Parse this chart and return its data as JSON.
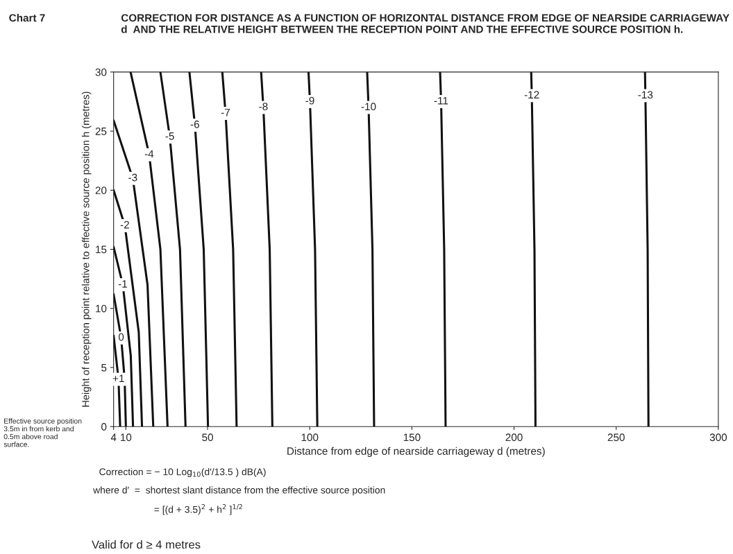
{
  "chart_data": {
    "type": "line",
    "title": "Chart 7",
    "subtitle": "CORRECTION FOR DISTANCE AS A FUNCTION OF HORIZONTAL DISTANCE FROM EDGE OF NEARSIDE CARRIAGEWAY d  AND THE RELATIVE HEIGHT BETWEEN THE RECEPTION POINT AND THE EFFECTIVE SOURCE POSITION h.",
    "xlabel": "Distance from edge of nearside carriageway d (metres)",
    "ylabel": "Height of reception point relative to effective source position h (metres)",
    "xlim": [
      4,
      300
    ],
    "xticks": [
      4,
      10,
      50,
      100,
      150,
      200,
      250,
      300
    ],
    "ylim": [
      0,
      30
    ],
    "yticks": [
      0,
      5,
      10,
      15,
      20,
      25,
      30
    ],
    "grid": false,
    "marker": "none",
    "line_style": "solid",
    "series": [
      {
        "name": "+1",
        "color": "#111111",
        "x": [
          7.2,
          6.4,
          4.0
        ],
        "values": [
          0,
          4,
          7.7
        ]
      },
      {
        "name": "0",
        "color": "#111111",
        "x": [
          10,
          9.4,
          7.7,
          4.0
        ],
        "values": [
          0,
          4,
          7.5,
          11.2
        ]
      },
      {
        "name": "-1",
        "color": "#111111",
        "x": [
          13.5,
          12.4,
          8.5,
          4.0
        ],
        "values": [
          0,
          6,
          12,
          15.2
        ]
      },
      {
        "name": "-2",
        "color": "#111111",
        "x": [
          17.9,
          16.3,
          9.5,
          4.0
        ],
        "values": [
          0,
          8,
          17,
          20
        ]
      },
      {
        "name": "-3",
        "color": "#111111",
        "x": [
          23.4,
          20.6,
          13.4,
          4.0
        ],
        "values": [
          0,
          12,
          21,
          25.9
        ]
      },
      {
        "name": "-4",
        "color": "#111111",
        "x": [
          30.4,
          26.9,
          21.4,
          12.3
        ],
        "values": [
          0,
          15,
          23,
          30
        ]
      },
      {
        "name": "-5",
        "color": "#111111",
        "x": [
          39.2,
          36.5,
          31.5,
          26.9
        ],
        "values": [
          0,
          15,
          24.5,
          30
        ]
      },
      {
        "name": "-6",
        "color": "#111111",
        "x": [
          50.2,
          48.1,
          43.8,
          41.1
        ],
        "values": [
          0,
          15,
          25.5,
          30
        ]
      },
      {
        "name": "-7",
        "color": "#111111",
        "x": [
          64.2,
          62.5,
          58.8,
          57.2
        ],
        "values": [
          0,
          15,
          26.5,
          30
        ]
      },
      {
        "name": "-8",
        "color": "#111111",
        "x": [
          81.7,
          80.4,
          77.3,
          76.2
        ],
        "values": [
          0,
          15,
          27,
          30
        ]
      },
      {
        "name": "-9",
        "color": "#111111",
        "x": [
          103.7,
          102.6,
          100.1,
          99.4
        ],
        "values": [
          0,
          15,
          27.5,
          30
        ]
      },
      {
        "name": "-10",
        "color": "#111111",
        "x": [
          131.5,
          130.7,
          128.8,
          128.1
        ],
        "values": [
          0,
          15,
          27,
          30
        ]
      },
      {
        "name": "-11",
        "color": "#111111",
        "x": [
          166.5,
          165.8,
          164.3,
          163.8
        ],
        "values": [
          0,
          15,
          27.5,
          30
        ]
      },
      {
        "name": "-12",
        "color": "#111111",
        "x": [
          210.5,
          210.0,
          208.7,
          208.4
        ],
        "values": [
          0,
          15,
          28,
          30
        ]
      },
      {
        "name": "-13",
        "color": "#111111",
        "x": [
          265.8,
          265.4,
          264.3,
          264.1
        ],
        "values": [
          0,
          15,
          28,
          30
        ]
      }
    ],
    "annotations": [
      "Effective source position 3.5m in from kerb and 0.5m above road surface.",
      "Correction = − 10 Log$_{10}$(d′/13.5 ) dB(A)",
      "where d′  =  shortest slant distance from the effective source position",
      "= [(d + 3.5)$^{2}$ + h$^{2}$ ]$^{1/2}$",
      "Valid for d ≥ 4 metres"
    ]
  }
}
